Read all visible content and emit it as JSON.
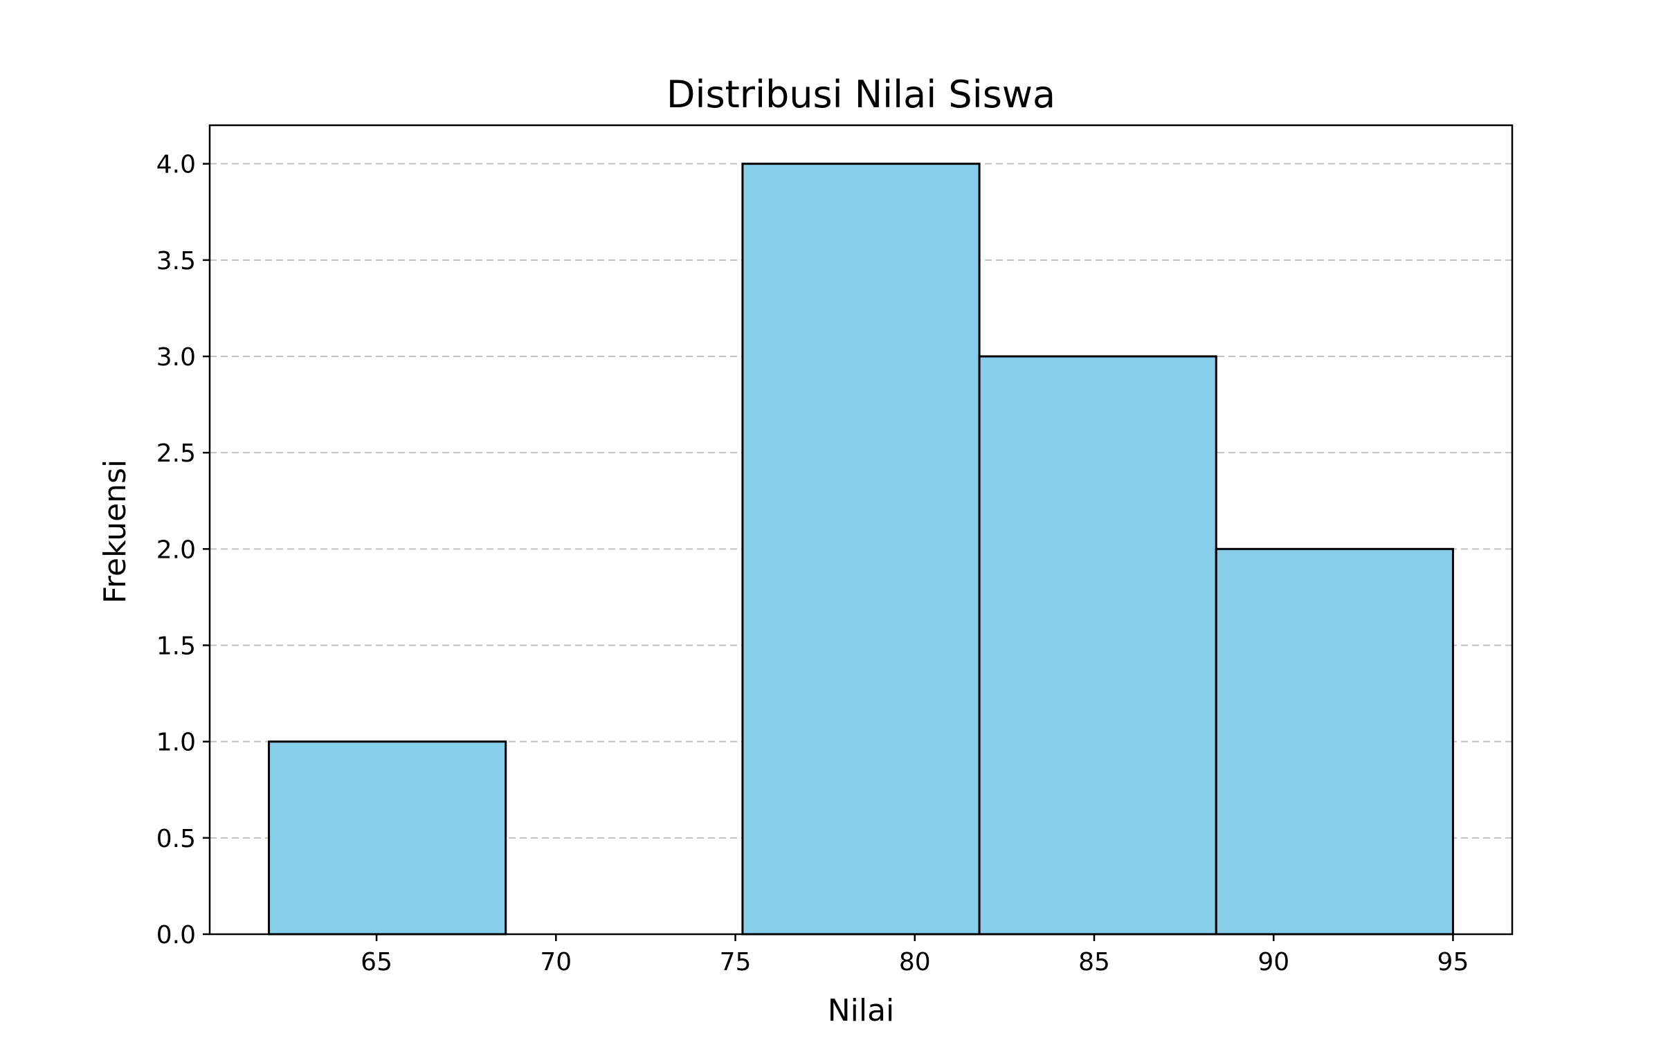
{
  "chart_data": {
    "type": "bar",
    "title": "Distribusi Nilai Siswa",
    "xlabel": "Nilai",
    "ylabel": "Frekuensi",
    "xlim": [
      60.35,
      96.65
    ],
    "ylim": [
      0,
      4.2
    ],
    "x_ticks": [
      "65",
      "70",
      "75",
      "80",
      "85",
      "90",
      "95"
    ],
    "y_ticks": [
      "0.0",
      "0.5",
      "1.0",
      "1.5",
      "2.0",
      "2.5",
      "3.0",
      "3.5",
      "4.0"
    ],
    "bins": [
      {
        "start": 62.0,
        "end": 68.6,
        "count": 1
      },
      {
        "start": 68.6,
        "end": 75.2,
        "count": 0
      },
      {
        "start": 75.2,
        "end": 81.8,
        "count": 4
      },
      {
        "start": 81.8,
        "end": 88.4,
        "count": 3
      },
      {
        "start": 88.4,
        "end": 95.0,
        "count": 2
      }
    ],
    "grid": "y-dashed",
    "colors": {
      "bar_fill": "#87CEEB",
      "bar_edge": "#000000",
      "grid": "#c0c0c0"
    }
  }
}
